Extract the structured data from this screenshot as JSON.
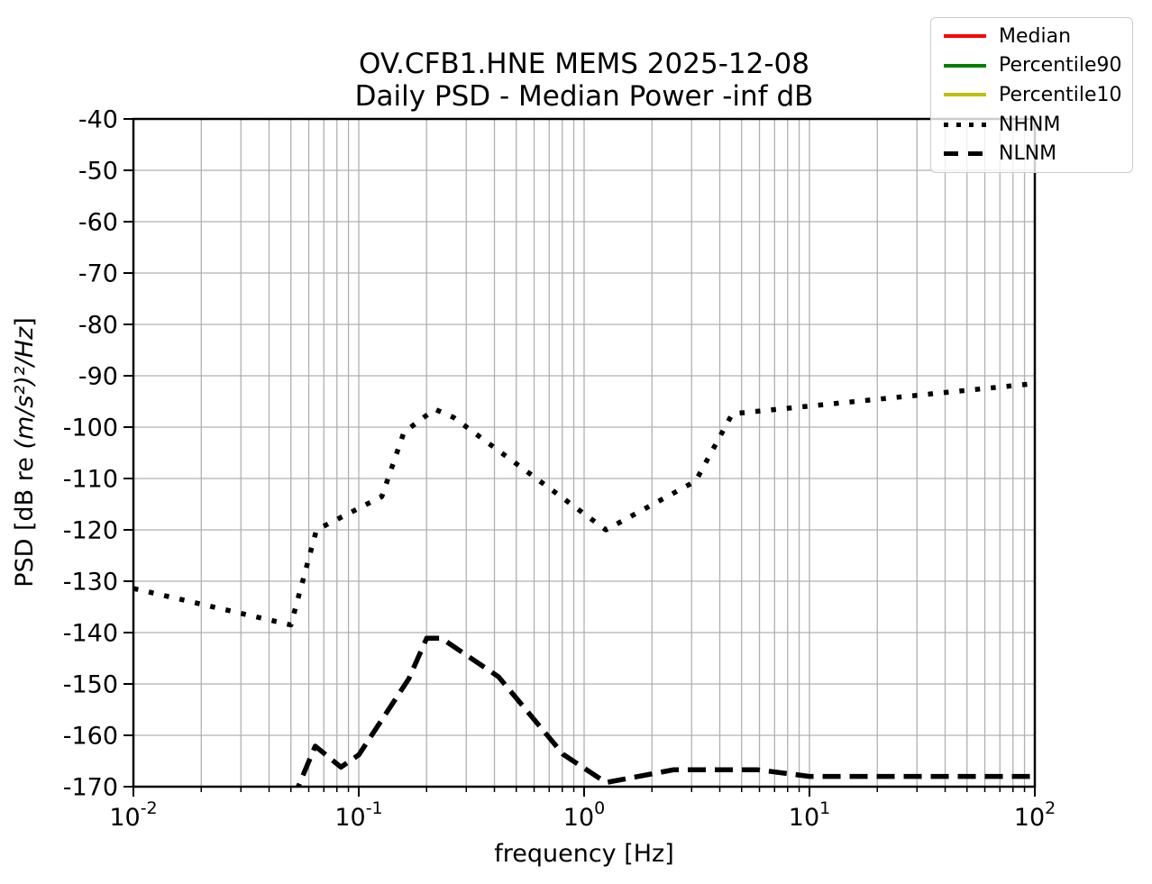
{
  "title": {
    "line1": "OV.CFB1.HNE MEMS 2025-12-08",
    "line2": "Daily PSD - Median Power -inf dB"
  },
  "axes": {
    "xlabel": "frequency [Hz]",
    "ylabel_prefix": "PSD [dB re ",
    "ylabel_math": "(m/s²)²/Hz",
    "ylabel_suffix": "]",
    "x_scale": "log",
    "x_tick_exponents": [
      -2,
      -1,
      0,
      1,
      2
    ],
    "y_ticks": [
      -40,
      -50,
      -60,
      -70,
      -80,
      -90,
      -100,
      -110,
      -120,
      -130,
      -140,
      -150,
      -160,
      -170
    ]
  },
  "legend": {
    "entries": [
      {
        "label": "Median",
        "color": "#ff0000",
        "style": "solid"
      },
      {
        "label": "Percentile90",
        "color": "#008000",
        "style": "solid"
      },
      {
        "label": "Percentile10",
        "color": "#bfbf00",
        "style": "solid"
      },
      {
        "label": "NHNM",
        "color": "#000000",
        "style": "dotted"
      },
      {
        "label": "NLNM",
        "color": "#000000",
        "style": "dashed"
      }
    ]
  },
  "chart_data": {
    "type": "line",
    "title": "OV.CFB1.HNE MEMS 2025-12-08 — Daily PSD - Median Power -inf dB",
    "xlabel": "frequency [Hz]",
    "ylabel": "PSD [dB re (m/s²)²/Hz]",
    "x_scale": "log",
    "xlim": [
      0.01,
      100
    ],
    "ylim": [
      -170,
      -40
    ],
    "grid": true,
    "legend_position": "upper right (outside, overlapping top-right corner)",
    "series": [
      {
        "name": "Median",
        "color": "#ff0000",
        "style": "solid",
        "points": []
      },
      {
        "name": "Percentile90",
        "color": "#008000",
        "style": "solid",
        "points": []
      },
      {
        "name": "Percentile10",
        "color": "#bfbf00",
        "style": "solid",
        "points": []
      },
      {
        "name": "NHNM",
        "color": "#000000",
        "style": "dotted",
        "points": [
          [
            0.01,
            -131.4
          ],
          [
            0.05,
            -138.5
          ],
          [
            0.0649,
            -120.0
          ],
          [
            0.1266,
            -113.5
          ],
          [
            0.1587,
            -101.0
          ],
          [
            0.2174,
            -96.5
          ],
          [
            0.2632,
            -98.1
          ],
          [
            1.25,
            -120.0
          ],
          [
            3.125,
            -110.5
          ],
          [
            4.545,
            -97.4
          ],
          [
            100,
            -91.5
          ]
        ]
      },
      {
        "name": "NLNM",
        "color": "#000000",
        "style": "dashed",
        "points": [
          [
            0.0457,
            -177.5
          ],
          [
            0.0641,
            -162.1
          ],
          [
            0.0833,
            -166.2
          ],
          [
            0.1,
            -163.8
          ],
          [
            0.1667,
            -149.0
          ],
          [
            0.2,
            -141.1
          ],
          [
            0.2326,
            -141.1
          ],
          [
            0.4167,
            -148.6
          ],
          [
            0.8065,
            -163.7
          ],
          [
            1.25,
            -169.2
          ],
          [
            2.5,
            -166.7
          ],
          [
            5.88,
            -166.7
          ],
          [
            10,
            -168.0
          ],
          [
            100,
            -168.0
          ]
        ]
      }
    ],
    "note_visible_series": "Only NHNM and NLNM curves are visible; Median/Percentile90/Percentile10 have no plotted data (power -inf dB)."
  }
}
